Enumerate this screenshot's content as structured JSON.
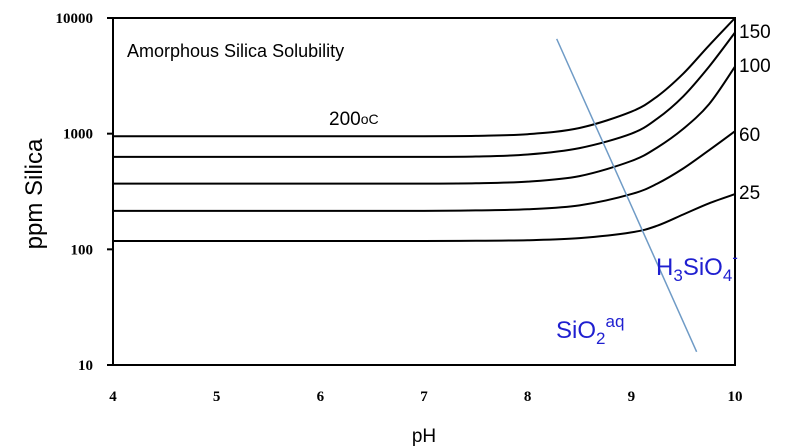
{
  "chart_data": {
    "type": "line",
    "title": "Amorphous Silica Solubility",
    "xlabel": "pH",
    "ylabel": "ppm Silica",
    "xlim": [
      4,
      10
    ],
    "ylim": [
      10,
      10000
    ],
    "yscale": "log",
    "x_ticks": [
      "4",
      "5",
      "6",
      "7",
      "8",
      "9",
      "10"
    ],
    "y_ticks": [
      "10",
      "100",
      "1000",
      "10000"
    ],
    "grid": false,
    "series": [
      {
        "name": "25",
        "color": "#000000",
        "x": [
          4,
          5,
          6,
          7,
          7.5,
          8,
          8.5,
          9,
          9.25,
          9.5,
          9.75,
          10
        ],
        "y": [
          118,
          118,
          118,
          118,
          118.5,
          120,
          125,
          140,
          160,
          200,
          250,
          300
        ]
      },
      {
        "name": "60",
        "color": "#000000",
        "x": [
          4,
          5,
          6,
          7,
          7.5,
          8,
          8.5,
          9,
          9.25,
          9.5,
          9.75,
          10
        ],
        "y": [
          215,
          215,
          215,
          215,
          217,
          222,
          240,
          300,
          370,
          500,
          720,
          1050
        ]
      },
      {
        "name": "100",
        "color": "#000000",
        "x": [
          4,
          5,
          6,
          7,
          7.5,
          8,
          8.5,
          9,
          9.25,
          9.5,
          9.75,
          10
        ],
        "y": [
          370,
          370,
          370,
          370,
          373,
          385,
          430,
          580,
          760,
          1100,
          1800,
          3800
        ]
      },
      {
        "name": "150",
        "color": "#000000",
        "x": [
          4,
          5,
          6,
          7,
          7.5,
          8,
          8.5,
          9,
          9.25,
          9.5,
          9.75,
          10
        ],
        "y": [
          630,
          630,
          630,
          630,
          635,
          660,
          750,
          1000,
          1350,
          2100,
          3800,
          7500
        ]
      },
      {
        "name": "200°C",
        "color": "#000000",
        "x": [
          4,
          5,
          6,
          7,
          7.5,
          8,
          8.5,
          9,
          9.25,
          9.5,
          9.75,
          10
        ],
        "y": [
          950,
          950,
          950,
          950,
          957,
          990,
          1120,
          1550,
          2100,
          3300,
          5800,
          10000
        ]
      }
    ],
    "boundary_line": {
      "color": "#6f9bc6",
      "x": [
        8.28,
        9.63
      ],
      "y": [
        6600,
        13
      ]
    },
    "annotations": {
      "temp_200": "200",
      "temp_200_unit": "oC",
      "label_150": "150",
      "label_100": "100",
      "label_60": "60",
      "label_25": "25",
      "sio2_base": "SiO",
      "sio2_sub": "2",
      "sio2_sup": "aq",
      "h3sio4_h": "H",
      "h3sio4_sub3": "3",
      "h3sio4_mid": "SiO",
      "h3sio4_sub4": "4",
      "h3sio4_sup": "-",
      "species_color": "#1f1fd0"
    }
  }
}
